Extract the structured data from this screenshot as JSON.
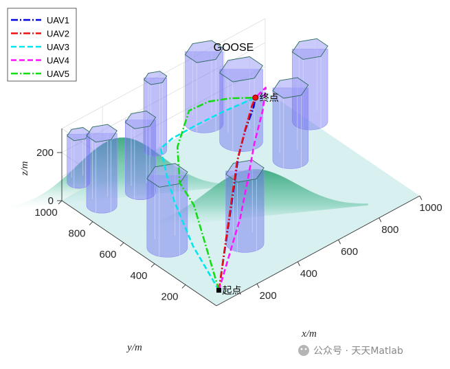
{
  "chart_data": {
    "type": "line",
    "title": "GOOSE",
    "xlabel": "x/m",
    "ylabel": "y/m",
    "zlabel": "z/m",
    "xlim": [
      0,
      1000
    ],
    "ylim": [
      0,
      1000
    ],
    "zlim": [
      0,
      300
    ],
    "x_ticks": [
      "200",
      "400",
      "600",
      "800",
      "1000"
    ],
    "y_ticks": [
      "200",
      "400",
      "600",
      "800",
      "1000"
    ],
    "z_ticks": [
      "0",
      "200"
    ],
    "grid": true,
    "legend_position": "top-left",
    "start_label": "起点",
    "end_label": "终点",
    "start": [
      50,
      50,
      20
    ],
    "end": [
      800,
      800,
      150
    ],
    "series": [
      {
        "name": "UAV1",
        "color": "#0000dd",
        "style": "dashdot",
        "points": [
          [
            50,
            50,
            20
          ],
          [
            230,
            240,
            60
          ],
          [
            400,
            420,
            95
          ],
          [
            540,
            570,
            120
          ],
          [
            660,
            680,
            135
          ],
          [
            760,
            760,
            145
          ],
          [
            800,
            800,
            150
          ]
        ]
      },
      {
        "name": "UAV2",
        "color": "#ee1111",
        "style": "dashdot",
        "points": [
          [
            50,
            50,
            20
          ],
          [
            220,
            230,
            65
          ],
          [
            380,
            400,
            100
          ],
          [
            520,
            550,
            125
          ],
          [
            650,
            670,
            140
          ],
          [
            760,
            770,
            148
          ],
          [
            800,
            800,
            150
          ]
        ]
      },
      {
        "name": "UAV3",
        "color": "#00e5ee",
        "style": "dashed",
        "points": [
          [
            50,
            50,
            20
          ],
          [
            60,
            230,
            120
          ],
          [
            120,
            430,
            190
          ],
          [
            180,
            560,
            220
          ],
          [
            220,
            650,
            270
          ],
          [
            330,
            720,
            230
          ],
          [
            480,
            760,
            200
          ],
          [
            630,
            780,
            180
          ],
          [
            800,
            800,
            150
          ]
        ]
      },
      {
        "name": "UAV4",
        "color": "#ff11ff",
        "style": "dashed",
        "points": [
          [
            50,
            50,
            20
          ],
          [
            360,
            320,
            60
          ],
          [
            520,
            480,
            80
          ],
          [
            650,
            610,
            110
          ],
          [
            760,
            700,
            160
          ],
          [
            820,
            760,
            200
          ],
          [
            800,
            800,
            150
          ]
        ]
      },
      {
        "name": "UAV5",
        "color": "#11dd11",
        "style": "dashdot",
        "points": [
          [
            50,
            50,
            20
          ],
          [
            170,
            370,
            180
          ],
          [
            230,
            540,
            170
          ],
          [
            310,
            660,
            230
          ],
          [
            420,
            730,
            300
          ],
          [
            540,
            760,
            270
          ],
          [
            660,
            780,
            220
          ],
          [
            800,
            800,
            150
          ]
        ]
      }
    ],
    "obstacles": [
      {
        "x": 100,
        "y": 450,
        "h": 300,
        "r": 80
      },
      {
        "x": 330,
        "y": 250,
        "h": 300,
        "r": 75
      },
      {
        "x": 250,
        "y": 820,
        "h": 300,
        "r": 60
      },
      {
        "x": 90,
        "y": 860,
        "h": 300,
        "r": 60
      },
      {
        "x": 460,
        "y": 1000,
        "h": 300,
        "r": 45
      },
      {
        "x": 700,
        "y": 1000,
        "h": 300,
        "r": 75
      },
      {
        "x": 730,
        "y": 800,
        "h": 300,
        "r": 85
      },
      {
        "x": 790,
        "y": 560,
        "h": 300,
        "r": 70
      },
      {
        "x": 1000,
        "y": 710,
        "h": 300,
        "r": 70
      },
      {
        "x": 120,
        "y": 1050,
        "h": 200,
        "r": 45
      }
    ],
    "terrain_peaks": [
      {
        "x": 170,
        "y": 850,
        "h": 250,
        "s": 180
      },
      {
        "x": 450,
        "y": 370,
        "h": 200,
        "s": 190
      }
    ]
  },
  "watermark": "公众号 · 天天Matlab"
}
